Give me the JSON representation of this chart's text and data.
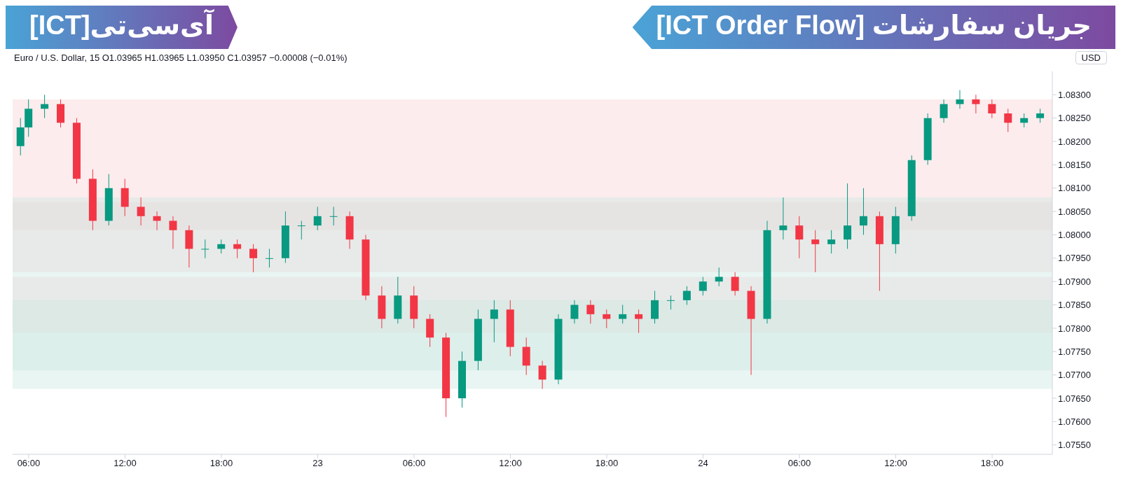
{
  "chart_data": {
    "type": "candlestick",
    "title": "جریان سفارشات [ICT Order Flow]",
    "subtitle": "آی‌سی‌تی[ICT]",
    "annotations": [
      "Euro / U.S. Dollar, 15 O1.03965 H1.03965 L1.03950 C1.03957 −0.00008 (−0.01%)",
      "USD"
    ],
    "x": [
      "--01-22T05:30",
      "--01-22T06:00",
      "--01-22T07:00",
      "--01-22T08:00",
      "--01-22T09:00",
      "--01-22T10:00",
      "--01-22T11:00",
      "--01-22T12:00",
      "--01-22T13:00",
      "--01-22T14:00",
      "--01-22T15:00",
      "--01-22T16:00",
      "--01-22T17:00",
      "--01-22T18:00",
      "--01-22T19:00",
      "--01-22T20:00",
      "--01-22T21:00",
      "--01-22T22:00",
      "--01-22T23:00",
      "--01-23T00:00",
      "--01-23T01:00",
      "--01-23T02:00",
      "--01-23T03:00",
      "--01-23T04:00",
      "--01-23T05:00",
      "--01-23T06:00",
      "--01-23T07:00",
      "--01-23T08:00",
      "--01-23T09:00",
      "--01-23T10:00",
      "--01-23T11:00",
      "--01-23T12:00",
      "--01-23T13:00",
      "--01-23T14:00",
      "--01-23T15:00",
      "--01-23T16:00",
      "--01-23T17:00",
      "--01-23T18:00",
      "--01-23T19:00",
      "--01-23T20:00",
      "--01-23T21:00",
      "--01-23T22:00",
      "--01-23T23:00",
      "--01-24T00:00",
      "--01-24T01:00",
      "--01-24T02:00",
      "--01-24T03:00",
      "--01-24T04:00",
      "--01-24T05:00",
      "--01-24T06:00",
      "--01-24T07:00",
      "--01-24T08:00",
      "--01-24T09:00",
      "--01-24T10:00",
      "--01-24T11:00",
      "--01-24T12:00",
      "--01-24T13:00",
      "--01-24T14:00",
      "--01-24T15:00",
      "--01-24T16:00",
      "--01-24T17:00",
      "--01-24T18:00",
      "--01-24T19:00",
      "--01-24T20:00",
      "--01-24T21:00"
    ],
    "ohlc": [
      [
        1.0819,
        1.0825,
        1.0817,
        1.0823
      ],
      [
        1.0823,
        1.0829,
        1.0821,
        1.0827
      ],
      [
        1.0827,
        1.083,
        1.0825,
        1.0828
      ],
      [
        1.0828,
        1.0829,
        1.0823,
        1.0824
      ],
      [
        1.0824,
        1.0825,
        1.0811,
        1.0812
      ],
      [
        1.0812,
        1.0814,
        1.0801,
        1.0803
      ],
      [
        1.0803,
        1.0813,
        1.0802,
        1.081
      ],
      [
        1.081,
        1.0812,
        1.0804,
        1.0806
      ],
      [
        1.0806,
        1.0808,
        1.0802,
        1.0804
      ],
      [
        1.0804,
        1.0805,
        1.0801,
        1.0803
      ],
      [
        1.0803,
        1.0804,
        1.0797,
        1.0801
      ],
      [
        1.0801,
        1.0802,
        1.0793,
        1.0797
      ],
      [
        1.0797,
        1.0799,
        1.0795,
        1.0797
      ],
      [
        1.0797,
        1.0799,
        1.0796,
        1.0798
      ],
      [
        1.0798,
        1.0799,
        1.0795,
        1.0797
      ],
      [
        1.0797,
        1.0798,
        1.0792,
        1.0795
      ],
      [
        1.0795,
        1.0797,
        1.0793,
        1.0795
      ],
      [
        1.0795,
        1.0805,
        1.0794,
        1.0802
      ],
      [
        1.0802,
        1.0803,
        1.0799,
        1.0802
      ],
      [
        1.0802,
        1.0806,
        1.0801,
        1.0804
      ],
      [
        1.0804,
        1.0806,
        1.0802,
        1.0804
      ],
      [
        1.0804,
        1.0805,
        1.0797,
        1.0799
      ],
      [
        1.0799,
        1.08,
        1.0786,
        1.0787
      ],
      [
        1.0787,
        1.0789,
        1.078,
        1.0782
      ],
      [
        1.0782,
        1.0791,
        1.0781,
        1.0787
      ],
      [
        1.0787,
        1.0789,
        1.078,
        1.0782
      ],
      [
        1.0782,
        1.0783,
        1.0776,
        1.0778
      ],
      [
        1.0778,
        1.0779,
        1.0761,
        1.0765
      ],
      [
        1.0765,
        1.0775,
        1.0763,
        1.0773
      ],
      [
        1.0773,
        1.0784,
        1.0771,
        1.0782
      ],
      [
        1.0782,
        1.0786,
        1.0777,
        1.0784
      ],
      [
        1.0784,
        1.0786,
        1.0774,
        1.0776
      ],
      [
        1.0776,
        1.0778,
        1.077,
        1.0772
      ],
      [
        1.0772,
        1.0773,
        1.0767,
        1.0769
      ],
      [
        1.0769,
        1.0783,
        1.0768,
        1.0782
      ],
      [
        1.0782,
        1.0786,
        1.0781,
        1.0785
      ],
      [
        1.0785,
        1.0786,
        1.0781,
        1.0783
      ],
      [
        1.0783,
        1.0784,
        1.078,
        1.0782
      ],
      [
        1.0782,
        1.0785,
        1.0781,
        1.0783
      ],
      [
        1.0783,
        1.0784,
        1.0779,
        1.0782
      ],
      [
        1.0782,
        1.0788,
        1.0781,
        1.0786
      ],
      [
        1.0786,
        1.0787,
        1.0784,
        1.0786
      ],
      [
        1.0786,
        1.0789,
        1.0785,
        1.0788
      ],
      [
        1.0788,
        1.0791,
        1.0787,
        1.079
      ],
      [
        1.079,
        1.0793,
        1.0789,
        1.0791
      ],
      [
        1.0791,
        1.0792,
        1.0787,
        1.0788
      ],
      [
        1.0788,
        1.0789,
        1.077,
        1.0782
      ],
      [
        1.0782,
        1.0803,
        1.0781,
        1.0801
      ],
      [
        1.0801,
        1.0808,
        1.0799,
        1.0802
      ],
      [
        1.0802,
        1.0804,
        1.0795,
        1.0799
      ],
      [
        1.0799,
        1.0801,
        1.0792,
        1.0798
      ],
      [
        1.0798,
        1.0801,
        1.0796,
        1.0799
      ],
      [
        1.0799,
        1.0811,
        1.0797,
        1.0802
      ],
      [
        1.0802,
        1.081,
        1.08,
        1.0804
      ],
      [
        1.0804,
        1.0805,
        1.0788,
        1.0798
      ],
      [
        1.0798,
        1.0806,
        1.0796,
        1.0804
      ],
      [
        1.0804,
        1.0817,
        1.0803,
        1.0816
      ],
      [
        1.0816,
        1.0826,
        1.0815,
        1.0825
      ],
      [
        1.0825,
        1.0829,
        1.0824,
        1.0828
      ],
      [
        1.0828,
        1.0831,
        1.0827,
        1.0829
      ],
      [
        1.0829,
        1.083,
        1.0826,
        1.0828
      ],
      [
        1.0828,
        1.0829,
        1.0825,
        1.0826
      ],
      [
        1.0826,
        1.0827,
        1.0822,
        1.0824
      ],
      [
        1.0824,
        1.0826,
        1.0823,
        1.0825
      ],
      [
        1.0825,
        1.0827,
        1.0824,
        1.0826
      ]
    ],
    "colors": [
      "#089981",
      "#089981",
      "#089981",
      "#f23645",
      "#f23645",
      "#f23645",
      "#089981",
      "#f23645",
      "#f23645",
      "#f23645",
      "#f23645",
      "#f23645",
      "#089981",
      "#089981",
      "#f23645",
      "#f23645",
      "#089981",
      "#089981",
      "#089981",
      "#089981",
      "#089981",
      "#f23645",
      "#f23645",
      "#f23645",
      "#089981",
      "#f23645",
      "#f23645",
      "#f23645",
      "#089981",
      "#089981",
      "#089981",
      "#f23645",
      "#f23645",
      "#f23645",
      "#089981",
      "#089981",
      "#f23645",
      "#f23645",
      "#089981",
      "#f23645",
      "#089981",
      "#089981",
      "#089981",
      "#089981",
      "#089981",
      "#f23645",
      "#f23645",
      "#089981",
      "#089981",
      "#f23645",
      "#f23645",
      "#089981",
      "#089981",
      "#089981",
      "#f23645",
      "#089981",
      "#089981",
      "#089981",
      "#089981",
      "#089981",
      "#f23645",
      "#f23645",
      "#f23645",
      "#089981",
      "#089981"
    ],
    "bands": [
      {
        "axis": "y",
        "from": 1.0815,
        "to": 1.0829,
        "color": "#f9d4d8"
      },
      {
        "axis": "y",
        "from": 1.0801,
        "to": 1.0815,
        "color": "#f9d4d8"
      },
      {
        "axis": "y",
        "from": 1.0792,
        "to": 1.0807,
        "color": "#f9d4d8"
      },
      {
        "axis": "y",
        "from": 1.0779,
        "to": 1.0791,
        "color": "#f9d4d8"
      },
      {
        "axis": "y",
        "from": 1.0767,
        "to": 1.0786,
        "color": "#cfe9e2"
      },
      {
        "axis": "y",
        "from": 1.0771,
        "to": 1.0788,
        "color": "#cfe9e2"
      },
      {
        "axis": "y",
        "from": 1.0788,
        "to": 1.0808,
        "color": "#cfe9e2"
      }
    ],
    "xlim": [
      "--01-22T05:00",
      "--01-24T21:45"
    ],
    "xticks": [
      {
        "value": "--01-22T06:00",
        "label": "06:00"
      },
      {
        "value": "--01-22T12:00",
        "label": "12:00"
      },
      {
        "value": "--01-22T18:00",
        "label": "18:00"
      },
      {
        "value": "--01-23T00:00",
        "label": "23"
      },
      {
        "value": "--01-23T06:00",
        "label": "06:00"
      },
      {
        "value": "--01-23T12:00",
        "label": "12:00"
      },
      {
        "value": "--01-23T18:00",
        "label": "18:00"
      },
      {
        "value": "--01-24T00:00",
        "label": "24"
      },
      {
        "value": "--01-24T06:00",
        "label": "06:00"
      },
      {
        "value": "--01-24T12:00",
        "label": "12:00"
      },
      {
        "value": "--01-24T18:00",
        "label": "18:00"
      }
    ],
    "ylim": [
      1.0753,
      1.0835
    ],
    "yticks": [
      {
        "value": 1.0755,
        "label": "1.07550"
      },
      {
        "value": 1.076,
        "label": "1.07600"
      },
      {
        "value": 1.0765,
        "label": "1.07650"
      },
      {
        "value": 1.077,
        "label": "1.07700"
      },
      {
        "value": 1.0775,
        "label": "1.07750"
      },
      {
        "value": 1.078,
        "label": "1.07800"
      },
      {
        "value": 1.0785,
        "label": "1.07850"
      },
      {
        "value": 1.079,
        "label": "1.07900"
      },
      {
        "value": 1.0795,
        "label": "1.07950"
      },
      {
        "value": 1.08,
        "label": "1.08000"
      },
      {
        "value": 1.0805,
        "label": "1.08050"
      },
      {
        "value": 1.081,
        "label": "1.08100"
      },
      {
        "value": 1.0815,
        "label": "1.08150"
      },
      {
        "value": 1.082,
        "label": "1.08200"
      },
      {
        "value": 1.0825,
        "label": "1.08250"
      },
      {
        "value": 1.083,
        "label": "1.08300"
      }
    ],
    "grid": false,
    "legend": false
  }
}
